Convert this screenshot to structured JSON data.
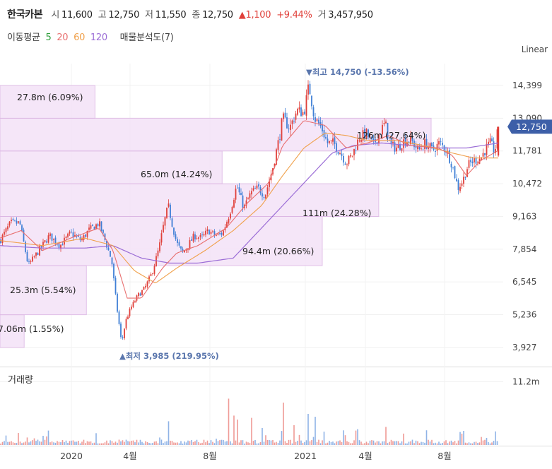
{
  "header": {
    "name": "한국카본",
    "open_label": "시",
    "open": "11,600",
    "high_label": "고",
    "high": "12,750",
    "low_label": "저",
    "low": "11,550",
    "close_label": "종",
    "close": "12,750",
    "change_arrow": "▲",
    "change": "1,100",
    "change_pct": "+9.44%",
    "volume_label": "거",
    "volume": "3,457,950"
  },
  "legend": {
    "ma_label": "이동평균",
    "ma5": "5",
    "ma20": "20",
    "ma60": "60",
    "ma120": "120",
    "vp_label": "매물분석도(7)"
  },
  "colors": {
    "up": "#e0403a",
    "down": "#3f7fd6",
    "ma5": "#2e9e3a",
    "ma20": "#e86f6f",
    "ma60": "#f0a04a",
    "ma120": "#9b6dd6",
    "profile_fill": "#f4e2f7",
    "profile_stroke": "#dcb6e4",
    "last_price_bg": "#3d5fa8",
    "annotation": "#5a76ad"
  },
  "chart_data": {
    "type": "candlestick",
    "scale": "Linear",
    "ylim": [
      3500,
      15400
    ],
    "y_ticks": [
      "14,399",
      "13,090",
      "11,781",
      "10,472",
      "9,163",
      "7,854",
      "6,545",
      "5,236",
      "3,927"
    ],
    "x_ticks": [
      "2020",
      "4월",
      "8월",
      "2021",
      "4월",
      "8월"
    ],
    "price_anchors": [
      [
        0,
        8200
      ],
      [
        15,
        8900
      ],
      [
        28,
        8900
      ],
      [
        40,
        7200
      ],
      [
        55,
        7800
      ],
      [
        70,
        8400
      ],
      [
        85,
        8000
      ],
      [
        100,
        8500
      ],
      [
        115,
        8200
      ],
      [
        125,
        8600
      ],
      [
        140,
        8900
      ],
      [
        150,
        8100
      ],
      [
        158,
        7400
      ],
      [
        165,
        5600
      ],
      [
        172,
        4100
      ],
      [
        178,
        5000
      ],
      [
        185,
        5500
      ],
      [
        195,
        6000
      ],
      [
        205,
        6300
      ],
      [
        215,
        6900
      ],
      [
        225,
        7900
      ],
      [
        232,
        8900
      ],
      [
        238,
        9600
      ],
      [
        244,
        8800
      ],
      [
        250,
        8100
      ],
      [
        258,
        7700
      ],
      [
        266,
        8000
      ],
      [
        275,
        8400
      ],
      [
        285,
        8300
      ],
      [
        295,
        8600
      ],
      [
        305,
        8400
      ],
      [
        315,
        8500
      ],
      [
        325,
        9300
      ],
      [
        335,
        10400
      ],
      [
        345,
        9500
      ],
      [
        355,
        10100
      ],
      [
        365,
        10300
      ],
      [
        375,
        10000
      ],
      [
        385,
        11000
      ],
      [
        395,
        12300
      ],
      [
        400,
        13100
      ],
      [
        410,
        12700
      ],
      [
        420,
        13400
      ],
      [
        430,
        13300
      ],
      [
        437,
        14400
      ],
      [
        445,
        13100
      ],
      [
        455,
        12700
      ],
      [
        463,
        12100
      ],
      [
        472,
        12100
      ],
      [
        482,
        11700
      ],
      [
        490,
        11300
      ],
      [
        498,
        11600
      ],
      [
        508,
        12300
      ],
      [
        518,
        12500
      ],
      [
        528,
        12000
      ],
      [
        537,
        12500
      ],
      [
        545,
        12900
      ],
      [
        552,
        12000
      ],
      [
        562,
        11900
      ],
      [
        572,
        12200
      ],
      [
        582,
        12200
      ],
      [
        592,
        11800
      ],
      [
        602,
        12100
      ],
      [
        612,
        11800
      ],
      [
        622,
        12100
      ],
      [
        632,
        11800
      ],
      [
        640,
        11200
      ],
      [
        648,
        10300
      ],
      [
        655,
        10600
      ],
      [
        662,
        11200
      ],
      [
        670,
        11400
      ],
      [
        680,
        11500
      ],
      [
        688,
        11900
      ],
      [
        694,
        12100
      ],
      [
        700,
        11700
      ],
      [
        705,
        12750
      ]
    ],
    "ma20_anchors": [
      [
        0,
        8300
      ],
      [
        30,
        8600
      ],
      [
        60,
        7800
      ],
      [
        100,
        8300
      ],
      [
        140,
        8700
      ],
      [
        160,
        7800
      ],
      [
        180,
        5900
      ],
      [
        200,
        5900
      ],
      [
        230,
        7100
      ],
      [
        250,
        7700
      ],
      [
        280,
        8000
      ],
      [
        320,
        8700
      ],
      [
        350,
        9700
      ],
      [
        380,
        10500
      ],
      [
        400,
        12000
      ],
      [
        430,
        13000
      ],
      [
        460,
        12800
      ],
      [
        490,
        11900
      ],
      [
        520,
        12100
      ],
      [
        550,
        12400
      ],
      [
        580,
        12000
      ],
      [
        620,
        11900
      ],
      [
        640,
        11600
      ],
      [
        660,
        10800
      ],
      [
        680,
        11400
      ],
      [
        705,
        11800
      ]
    ],
    "ma60_anchors": [
      [
        0,
        8200
      ],
      [
        60,
        8000
      ],
      [
        120,
        8300
      ],
      [
        160,
        8000
      ],
      [
        190,
        7000
      ],
      [
        220,
        6500
      ],
      [
        250,
        7100
      ],
      [
        290,
        7800
      ],
      [
        330,
        8600
      ],
      [
        370,
        9600
      ],
      [
        400,
        10800
      ],
      [
        430,
        11900
      ],
      [
        460,
        12500
      ],
      [
        490,
        12400
      ],
      [
        520,
        12200
      ],
      [
        560,
        12200
      ],
      [
        600,
        12000
      ],
      [
        640,
        11700
      ],
      [
        670,
        11500
      ],
      [
        705,
        11500
      ]
    ],
    "ma120_anchors": [
      [
        0,
        8000
      ],
      [
        60,
        7900
      ],
      [
        120,
        7900
      ],
      [
        160,
        8000
      ],
      [
        200,
        7500
      ],
      [
        240,
        7300
      ],
      [
        280,
        7300
      ],
      [
        330,
        7500
      ],
      [
        360,
        8400
      ],
      [
        400,
        9600
      ],
      [
        440,
        10800
      ],
      [
        470,
        11700
      ],
      [
        500,
        12000
      ],
      [
        540,
        12100
      ],
      [
        580,
        12000
      ],
      [
        620,
        11900
      ],
      [
        660,
        11900
      ],
      [
        705,
        12100
      ]
    ],
    "volume_profile": [
      {
        "label": "7.06m (1.55%)",
        "low": 3927,
        "high": 5236,
        "share": 1.55
      },
      {
        "label": "25.3m (5.54%)",
        "low": 5236,
        "high": 7200,
        "share": 5.54
      },
      {
        "label": "94.4m (20.66%)",
        "low": 7200,
        "high": 9163,
        "share": 20.66
      },
      {
        "label": "111m (24.28%)",
        "low": 9163,
        "high": 10472,
        "share": 24.28
      },
      {
        "label": "65.0m (14.24%)",
        "low": 10472,
        "high": 11781,
        "share": 14.24
      },
      {
        "label": "126m (27.64%)",
        "low": 11781,
        "high": 13090,
        "share": 27.64
      },
      {
        "label": "27.8m (6.09%)",
        "low": 13090,
        "high": 14399,
        "share": 6.09
      }
    ],
    "high_marker": {
      "arrow": "▼",
      "label": "최고 14,750 (-13.56%)",
      "value": 14750
    },
    "low_marker": {
      "arrow": "▲",
      "label": "최저 3,985 (219.95%)",
      "value": 3985
    },
    "last_price": {
      "label": "12,750",
      "value": 12750
    },
    "volume_panel": {
      "title": "거래량",
      "y_tick": "11.2m",
      "y_tick_value": 11200000,
      "ymax": 13500000,
      "spikes": [
        [
          238,
          4200000
        ],
        [
          324,
          8200000
        ],
        [
          330,
          5200000
        ],
        [
          336,
          4500000
        ],
        [
          355,
          4800000
        ],
        [
          372,
          3000000
        ],
        [
          401,
          7500000
        ],
        [
          417,
          3500000
        ],
        [
          435,
          5500000
        ],
        [
          447,
          5000000
        ],
        [
          505,
          2800000
        ],
        [
          545,
          3200000
        ],
        [
          603,
          2600000
        ],
        [
          655,
          2500000
        ],
        [
          705,
          3457950
        ]
      ]
    }
  }
}
